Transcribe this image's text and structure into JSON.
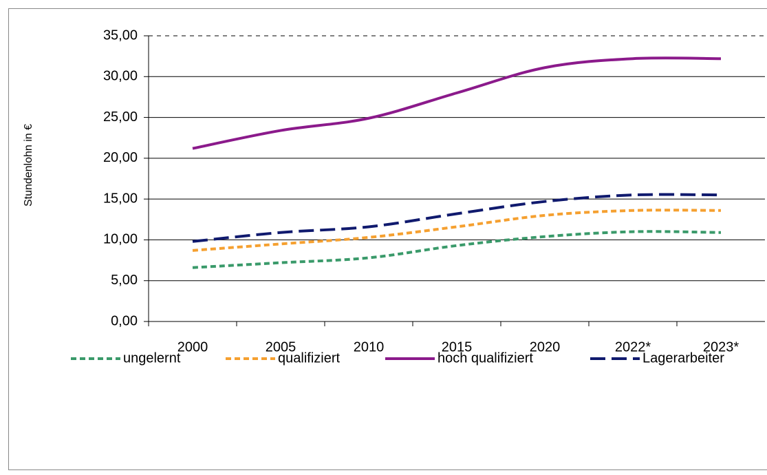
{
  "chart_data": {
    "type": "line",
    "ylabel": "Stundenlohn in €",
    "categories": [
      "2000",
      "2005",
      "2010",
      "2015",
      "2020",
      "2022*",
      "2023*"
    ],
    "series": [
      {
        "name": "ungelernt",
        "color": "#3a9a6a",
        "dash": "dotted",
        "values": [
          6.6,
          7.2,
          7.8,
          9.3,
          10.4,
          11.0,
          10.9
        ]
      },
      {
        "name": "qualifiziert",
        "color": "#f5a030",
        "dash": "dotted",
        "values": [
          8.7,
          9.5,
          10.3,
          11.6,
          13.0,
          13.6,
          13.6
        ]
      },
      {
        "name": "hoch qualifiziert",
        "color": "#8b1a8b",
        "dash": "solid",
        "values": [
          21.2,
          23.4,
          24.9,
          28.0,
          31.1,
          32.2,
          32.2
        ]
      },
      {
        "name": "Lagerarbeiter",
        "color": "#101a6e",
        "dash": "dashed",
        "values": [
          9.8,
          10.9,
          11.6,
          13.2,
          14.7,
          15.5,
          15.5
        ]
      }
    ],
    "ylim": [
      0,
      35
    ],
    "yticks": [
      {
        "value": 0,
        "label": "0,00"
      },
      {
        "value": 5,
        "label": "5,00"
      },
      {
        "value": 10,
        "label": "10,00"
      },
      {
        "value": 15,
        "label": "15,00"
      },
      {
        "value": 20,
        "label": "20,00"
      },
      {
        "value": 25,
        "label": "25,00"
      },
      {
        "value": 30,
        "label": "30,00"
      },
      {
        "value": 35,
        "label": "35,00"
      }
    ],
    "grid": true,
    "legend": "bottom"
  }
}
